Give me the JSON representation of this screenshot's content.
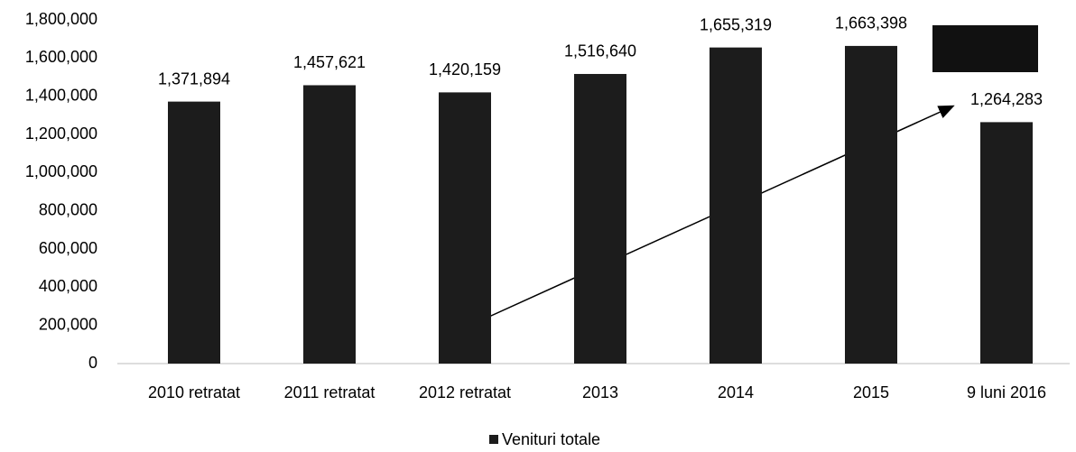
{
  "chart_data": {
    "type": "bar",
    "categories": [
      "2010 retratat",
      "2011 retratat",
      "2012 retratat",
      "2013",
      "2014",
      "2015",
      "9 luni 2016"
    ],
    "series": [
      {
        "name": "Venituri totale",
        "color": "#1c1c1c",
        "values": [
          1371894,
          1457621,
          1420159,
          1516640,
          1655319,
          1663398,
          1264283
        ],
        "value_labels": [
          "1,371,894",
          "1,457,621",
          "1,420,159",
          "1,516,640",
          "1,655,319",
          "1,663,398",
          "1,264,283"
        ]
      }
    ],
    "ylim": [
      0,
      1800000
    ],
    "yticks": [
      0,
      {
        "value": 200000,
        "label": "200,000"
      },
      {
        "value": 400000,
        "label": "400,000"
      },
      {
        "value": 600000,
        "label": "600,000"
      },
      {
        "value": 800000,
        "label": "800,000"
      },
      {
        "value": 1000000,
        "label": "1,000,000"
      },
      {
        "value": 1200000,
        "label": "1,200,000"
      },
      {
        "value": 1400000,
        "label": "1,400,000"
      },
      {
        "value": 1600000,
        "label": "1,600,000"
      },
      {
        "value": 1800000,
        "label": "1,800,000"
      }
    ],
    "grid": false,
    "legend": "bottom"
  }
}
